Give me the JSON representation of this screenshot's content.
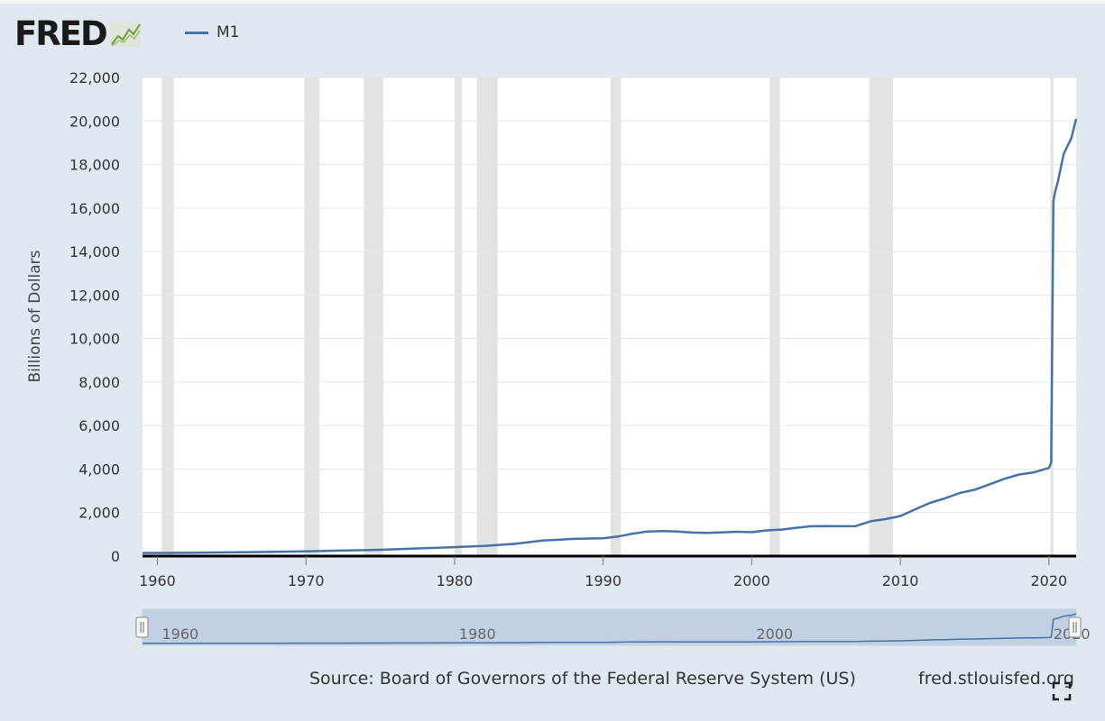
{
  "header": {
    "logo_text": "FRED",
    "legend_label": "M1",
    "legend_color": "#4572a7"
  },
  "footer": {
    "source": "Source: Board of Governors of the Federal Reserve System (US)",
    "site": "fred.stlouisfed.org"
  },
  "chart_data": {
    "type": "line",
    "title": "",
    "xlabel": "",
    "ylabel": "Billions of Dollars",
    "xlim": [
      1959,
      2021.83
    ],
    "ylim": [
      0,
      22000
    ],
    "y_ticks": [
      0,
      2000,
      4000,
      6000,
      8000,
      10000,
      12000,
      14000,
      16000,
      18000,
      20000,
      22000
    ],
    "y_tick_labels": [
      "0",
      "2,000",
      "4,000",
      "6,000",
      "8,000",
      "10,000",
      "12,000",
      "14,000",
      "16,000",
      "18,000",
      "20,000",
      "22,000"
    ],
    "x_ticks": [
      1960,
      1970,
      1980,
      1990,
      2000,
      2010,
      2020
    ],
    "x_tick_labels": [
      "1960",
      "1970",
      "1980",
      "1990",
      "2000",
      "2010",
      "2020"
    ],
    "grid": true,
    "legend": "top-left",
    "recessions": [
      [
        1960.3,
        1961.1
      ],
      [
        1969.9,
        1970.9
      ],
      [
        1973.9,
        1975.2
      ],
      [
        1980.0,
        1980.5
      ],
      [
        1981.5,
        1982.9
      ],
      [
        1990.5,
        1991.2
      ],
      [
        2001.2,
        2001.9
      ],
      [
        2007.9,
        2009.5
      ],
      [
        2020.1,
        2020.3
      ]
    ],
    "series": [
      {
        "name": "M1",
        "color": "#4572a7",
        "x": [
          1959,
          1962,
          1965,
          1968,
          1970,
          1972,
          1975,
          1978,
          1980,
          1982,
          1984,
          1986,
          1987,
          1988,
          1990,
          1991,
          1992,
          1993,
          1994,
          1995,
          1996,
          1997,
          1998,
          1999,
          2000,
          2001,
          2002,
          2003,
          2004,
          2005,
          2006,
          2007,
          2008,
          2009,
          2010,
          2011,
          2012,
          2013,
          2014,
          2015,
          2016,
          2017,
          2018,
          2019,
          2020.0,
          2020.15,
          2020.3,
          2020.4,
          2020.6,
          2021.0,
          2021.5,
          2021.83
        ],
        "values": [
          140,
          148,
          170,
          200,
          215,
          250,
          290,
          360,
          410,
          470,
          560,
          720,
          750,
          790,
          820,
          900,
          1030,
          1130,
          1150,
          1130,
          1080,
          1070,
          1090,
          1120,
          1100,
          1180,
          1220,
          1300,
          1370,
          1380,
          1370,
          1380,
          1600,
          1700,
          1840,
          2150,
          2450,
          2650,
          2900,
          3050,
          3300,
          3550,
          3750,
          3850,
          4050,
          4300,
          16300,
          16700,
          17200,
          18500,
          19200,
          20100
        ]
      }
    ]
  },
  "navigator": {
    "labels": [
      "1960",
      "1980",
      "2000",
      "2020"
    ]
  }
}
